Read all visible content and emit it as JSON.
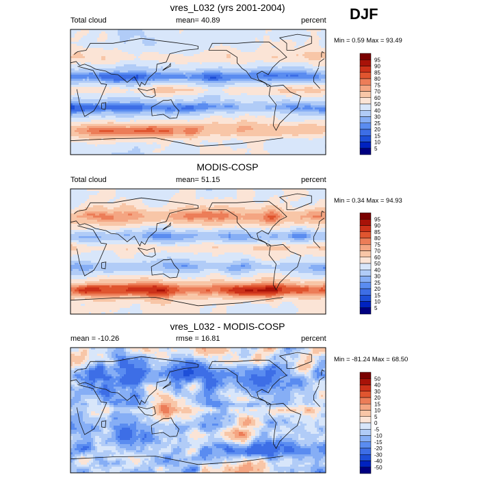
{
  "season_label": "DJF",
  "chart_data": [
    {
      "type": "heatmap",
      "title": "vres_L032 (yrs 2001-2004)",
      "left_label": "Total cloud",
      "stat_label": "mean=  40.89",
      "mean": 40.89,
      "units": "percent",
      "minmax_label": "Min =   0.59 Max =  93.49",
      "min": 0.59,
      "max": 93.49,
      "colorbar_levels": [
        "95",
        "90",
        "85",
        "80",
        "75",
        "70",
        "60",
        "50",
        "40",
        "30",
        "25",
        "20",
        "15",
        "10",
        "5"
      ],
      "field": "model"
    },
    {
      "type": "heatmap",
      "title": "MODIS-COSP",
      "left_label": "Total cloud",
      "stat_label": "mean=  51.15",
      "mean": 51.15,
      "units": "percent",
      "minmax_label": "Min =   0.34 Max =  94.93",
      "min": 0.34,
      "max": 94.93,
      "colorbar_levels": [
        "95",
        "90",
        "85",
        "80",
        "75",
        "70",
        "60",
        "50",
        "40",
        "30",
        "25",
        "20",
        "15",
        "10",
        "5"
      ],
      "field": "obs"
    },
    {
      "type": "heatmap",
      "title": "vres_L032 - MODIS-COSP",
      "left_label": "mean = -10.26",
      "stat_label": "rmse =  16.81",
      "mean": -10.26,
      "rmse": 16.81,
      "units": "percent",
      "minmax_label": "Min = -81.24 Max =  68.50",
      "min": -81.24,
      "max": 68.5,
      "colorbar_levels": [
        "50",
        "40",
        "30",
        "20",
        "15",
        "10",
        "5",
        "0",
        "-5",
        "-10",
        "-15",
        "-20",
        "-30",
        "-40",
        "-50"
      ],
      "field": "diff"
    }
  ],
  "colors": {
    "abs_scale": [
      "#000080",
      "#0022c0",
      "#1e4fd8",
      "#3d6ee6",
      "#5a8cf0",
      "#86aef5",
      "#b1ccf7",
      "#d8e6fa",
      "#fbe4d6",
      "#f8c6a7",
      "#f4a582",
      "#ec7d58",
      "#e0552f",
      "#cc3119",
      "#a81208",
      "#7a0000"
    ],
    "diff_scale": [
      "#000080",
      "#0022c0",
      "#1e4fd8",
      "#3d6ee6",
      "#5a8cf0",
      "#86aef5",
      "#b1ccf7",
      "#d8e6fa",
      "#fbe4d6",
      "#f8c6a7",
      "#f4a582",
      "#ec7d58",
      "#e0552f",
      "#cc3119",
      "#a81208",
      "#7a0000"
    ]
  }
}
